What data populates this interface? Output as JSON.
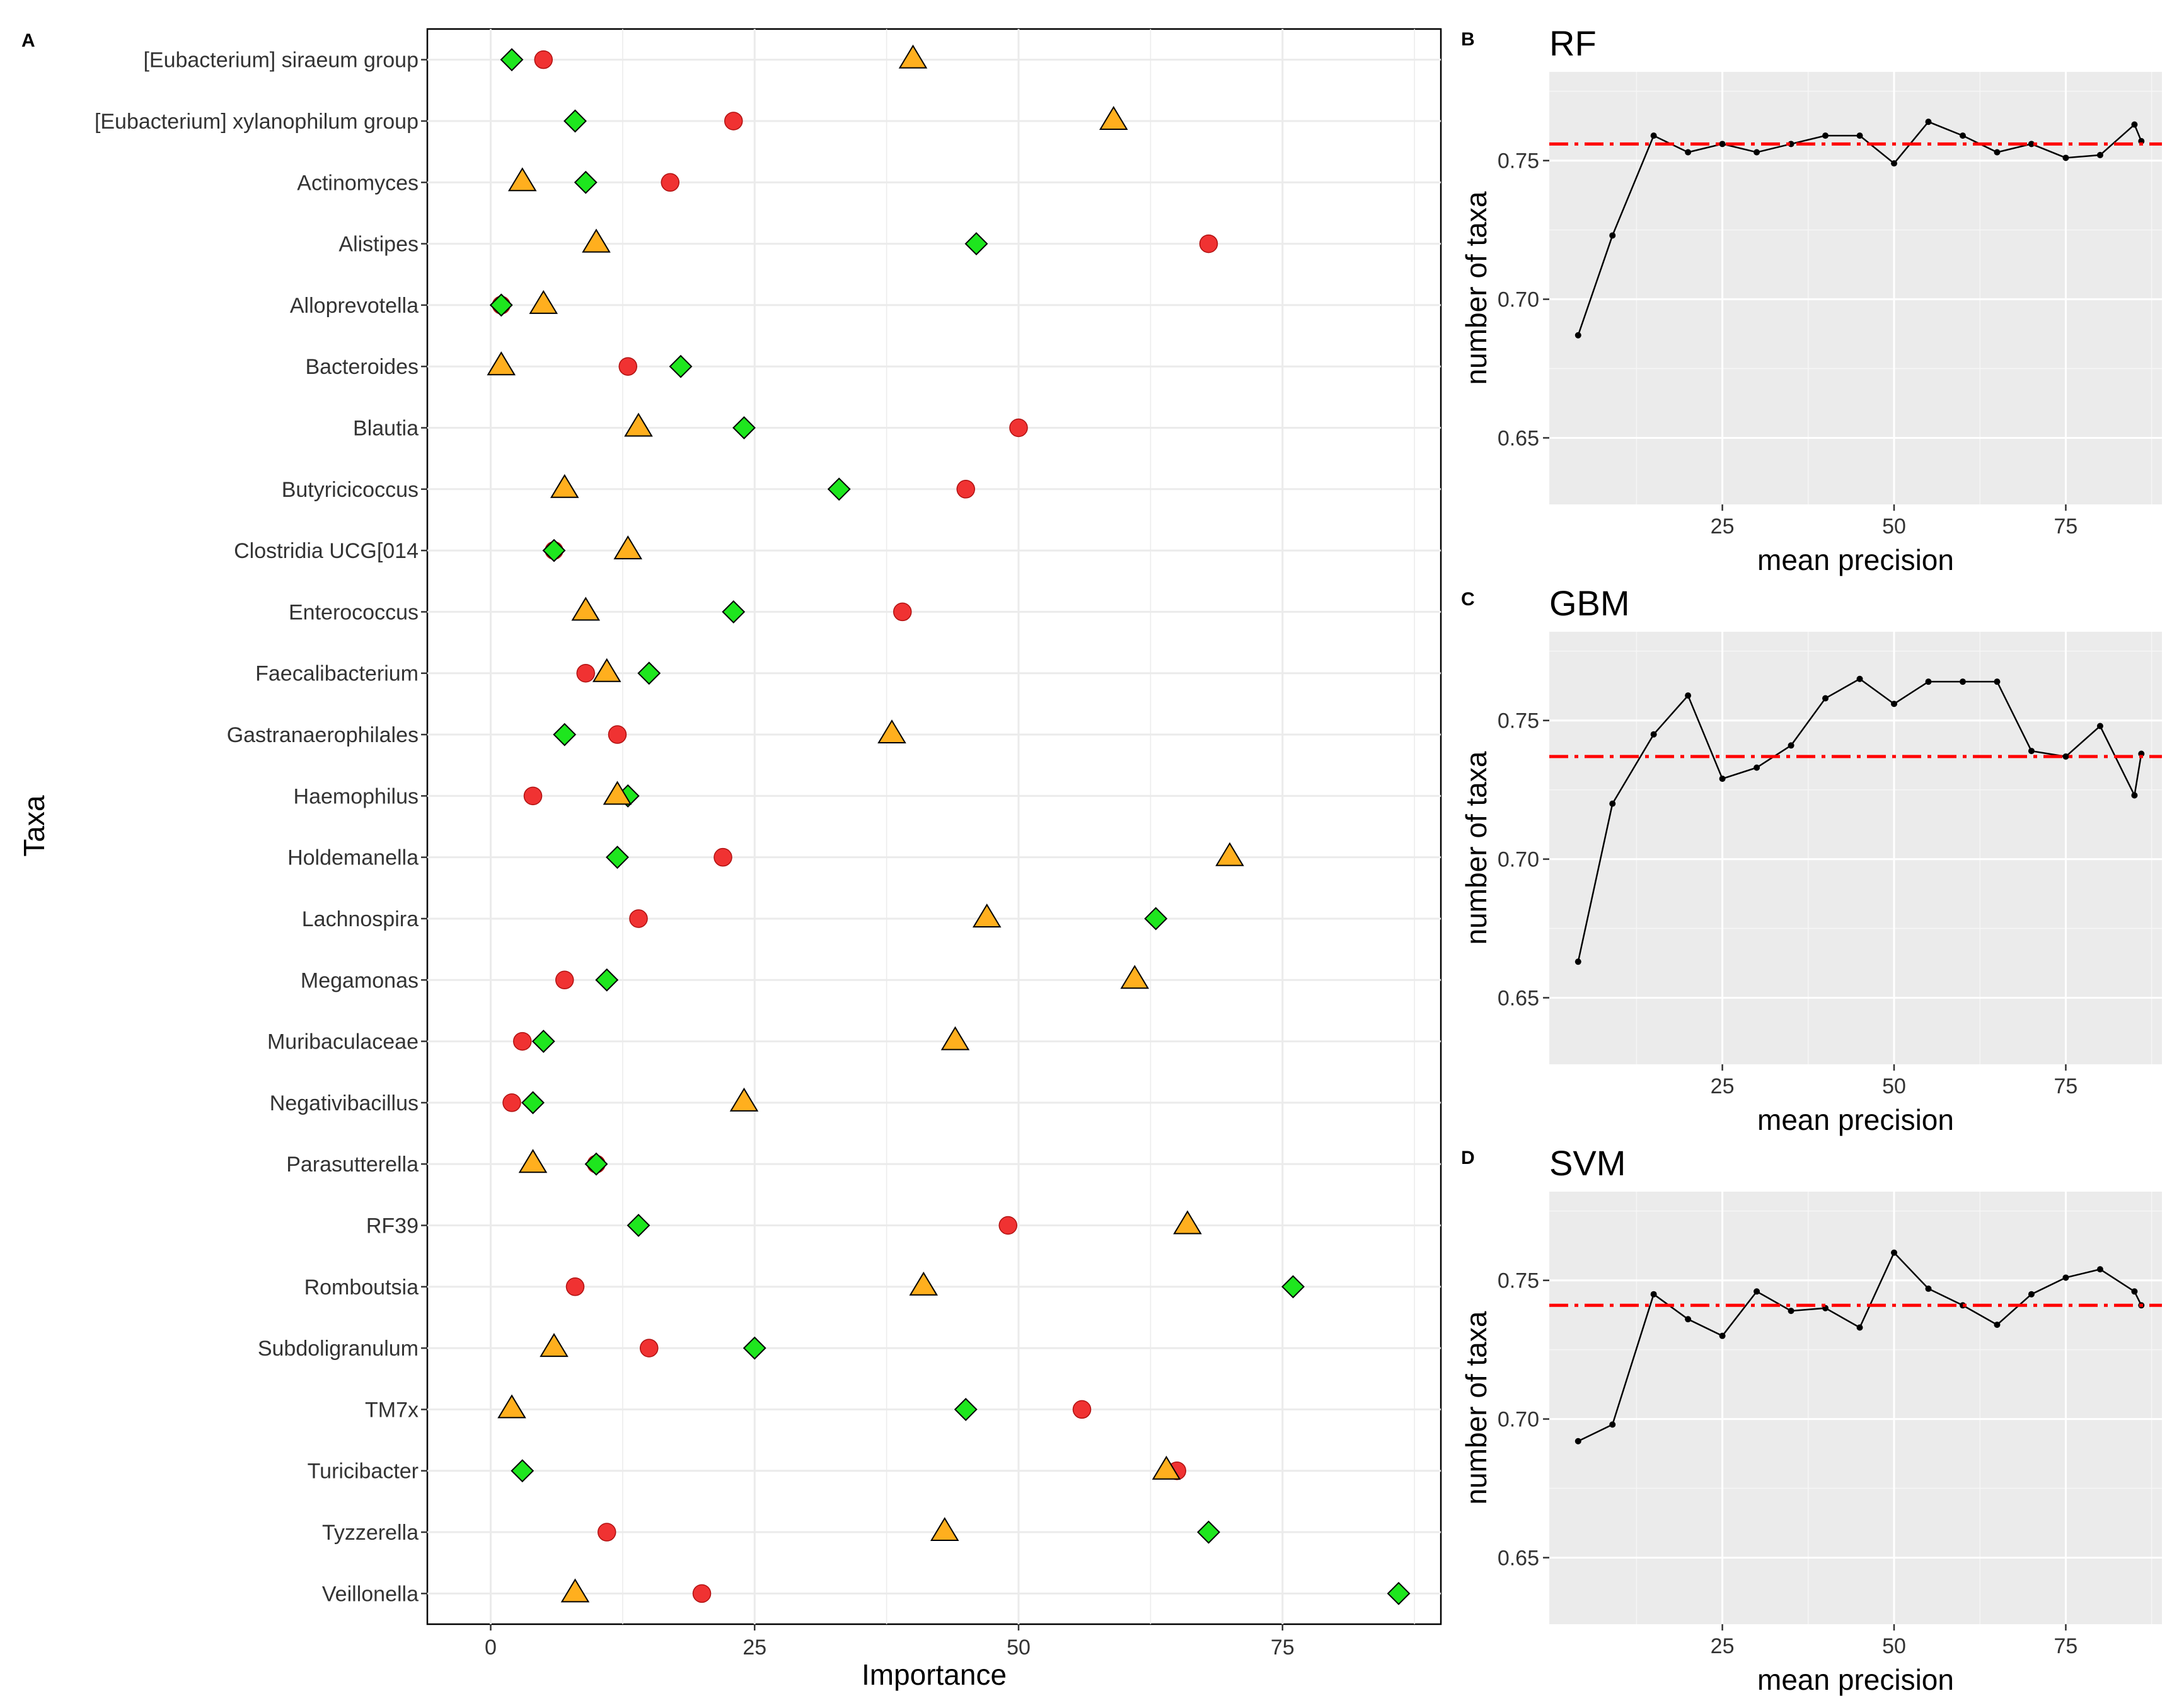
{
  "chart_data": [
    {
      "panel": "A",
      "type": "scatter",
      "xlabel": "Importance",
      "ylabel": "Taxa",
      "xlim": [
        -6,
        90
      ],
      "xticks": [
        0,
        25,
        50,
        75
      ],
      "grid": true,
      "legend": "none",
      "categories": [
        "[Eubacterium] siraeum group",
        "[Eubacterium] xylanophilum group",
        "Actinomyces",
        "Alistipes",
        "Alloprevotella",
        "Bacteroides",
        "Blautia",
        "Butyricicoccus",
        "Clostridia UCG[014",
        "Enterococcus",
        "Faecalibacterium",
        "Gastranaerophilales",
        "Haemophilus",
        "Holdemanella",
        "Lachnospira",
        "Megamonas",
        "Muribaculaceae",
        "Negativibacillus",
        "Parasutterella",
        "RF39",
        "Romboutsia",
        "Subdoligranulum",
        "TM7x",
        "Turicibacter",
        "Tyzzerella",
        "Veillonella"
      ],
      "series": [
        {
          "marker": "circle",
          "color": "#f03232",
          "values": [
            5,
            23,
            17,
            68,
            1,
            13,
            50,
            45,
            6,
            39,
            9,
            12,
            4,
            22,
            14,
            7,
            3,
            2,
            10,
            49,
            8,
            15,
            56,
            65,
            11,
            20
          ]
        },
        {
          "marker": "diamond",
          "color": "#1ee61e",
          "values": [
            2,
            8,
            9,
            46,
            1,
            18,
            24,
            33,
            6,
            23,
            15,
            7,
            13,
            12,
            63,
            11,
            5,
            4,
            10,
            14,
            76,
            25,
            45,
            3,
            68,
            86
          ]
        },
        {
          "marker": "triangle",
          "color": "#ffaf1e",
          "values": [
            40,
            59,
            3,
            10,
            5,
            1,
            14,
            7,
            13,
            9,
            11,
            38,
            12,
            70,
            47,
            61,
            44,
            24,
            4,
            66,
            41,
            6,
            2,
            64,
            43,
            8
          ]
        }
      ]
    },
    {
      "panel": "B",
      "type": "line",
      "title": "RF",
      "xlabel": "mean precision",
      "ylabel": "number of taxa",
      "xlim": [
        -0.2,
        89
      ],
      "ylim": [
        0.626,
        0.782
      ],
      "xticks": [
        25,
        50,
        75
      ],
      "yticks": [
        0.65,
        0.7,
        0.75
      ],
      "reference_line": 0.756,
      "reference_color": "#ff0000",
      "x": [
        4,
        9,
        15,
        20,
        25,
        30,
        35,
        40,
        45,
        50,
        55,
        60,
        65,
        70,
        75,
        80,
        85,
        86
      ],
      "y": [
        0.687,
        0.723,
        0.759,
        0.753,
        0.756,
        0.753,
        0.756,
        0.759,
        0.759,
        0.749,
        0.764,
        0.759,
        0.753,
        0.756,
        0.751,
        0.752,
        0.763,
        0.757
      ]
    },
    {
      "panel": "C",
      "type": "line",
      "title": "GBM",
      "xlabel": "mean precision",
      "ylabel": "number of taxa",
      "xlim": [
        -0.2,
        89
      ],
      "ylim": [
        0.626,
        0.782
      ],
      "xticks": [
        25,
        50,
        75
      ],
      "yticks": [
        0.65,
        0.7,
        0.75
      ],
      "reference_line": 0.737,
      "reference_color": "#ff0000",
      "x": [
        4,
        9,
        15,
        20,
        25,
        30,
        35,
        40,
        45,
        50,
        55,
        60,
        65,
        70,
        75,
        80,
        85,
        86
      ],
      "y": [
        0.663,
        0.72,
        0.745,
        0.759,
        0.729,
        0.733,
        0.741,
        0.758,
        0.765,
        0.756,
        0.764,
        0.764,
        0.764,
        0.739,
        0.737,
        0.748,
        0.723,
        0.738
      ]
    },
    {
      "panel": "D",
      "type": "line",
      "title": "SVM",
      "xlabel": "mean precision",
      "ylabel": "number of taxa",
      "xlim": [
        -0.2,
        89
      ],
      "ylim": [
        0.626,
        0.782
      ],
      "xticks": [
        25,
        50,
        75
      ],
      "yticks": [
        0.65,
        0.7,
        0.75
      ],
      "reference_line": 0.741,
      "reference_color": "#ff0000",
      "x": [
        4,
        9,
        15,
        20,
        25,
        30,
        35,
        40,
        45,
        50,
        55,
        60,
        65,
        70,
        75,
        80,
        85,
        86
      ],
      "y": [
        0.692,
        0.698,
        0.745,
        0.736,
        0.73,
        0.746,
        0.739,
        0.74,
        0.733,
        0.76,
        0.747,
        0.741,
        0.734,
        0.745,
        0.751,
        0.754,
        0.746,
        0.741
      ]
    }
  ]
}
